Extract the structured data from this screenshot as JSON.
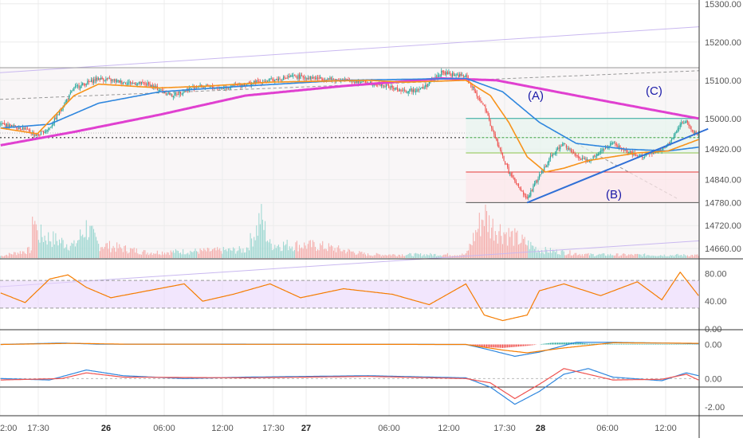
{
  "colors": {
    "candle_up": "#26a69a",
    "candle_down": "#ef5350",
    "ema_fast": "#f7931a",
    "ema_mid": "#2e86de",
    "ma_slow": "#e040d0",
    "trendline": "#2f6fd6",
    "wave_label": "#1a1aa8",
    "rsi_line": "#f57c00",
    "rsi_band": "#ead6fb",
    "macd_line": "#2e86de",
    "macd_signal": "#f57c00",
    "osc_line1": "#2e86de",
    "osc_line2": "#ef5350",
    "grid": "#ececec",
    "axis_text": "#555555"
  },
  "annotations": {
    "wave_a": "(A)",
    "wave_b": "(B)",
    "wave_c": "(C)"
  },
  "chart_data": [
    {
      "type": "candlestick",
      "panel": "price",
      "xlabel": "",
      "ylabel": "",
      "x_tick_labels": [
        "2:00",
        "17:30",
        "26",
        "06:00",
        "12:00",
        "17:30",
        "27",
        "06:00",
        "12:00",
        "17:30",
        "28",
        "06:00",
        "12:00"
      ],
      "y_tick_labels": [
        "15300.00",
        "15200.00",
        "15100.00",
        "15000.00",
        "14920.00",
        "14840.00",
        "14780.00",
        "14720.00",
        "14660.00"
      ],
      "ylim": [
        14635,
        15310
      ],
      "close_anchors": [
        [
          0,
          14985
        ],
        [
          18,
          14975
        ],
        [
          30,
          14955
        ],
        [
          40,
          14975
        ],
        [
          60,
          15080
        ],
        [
          80,
          15105
        ],
        [
          100,
          15095
        ],
        [
          120,
          15090
        ],
        [
          140,
          15060
        ],
        [
          160,
          15085
        ],
        [
          180,
          15080
        ],
        [
          200,
          15090
        ],
        [
          220,
          15100
        ],
        [
          240,
          15110
        ],
        [
          260,
          15105
        ],
        [
          280,
          15100
        ],
        [
          300,
          15095
        ],
        [
          315,
          15085
        ],
        [
          330,
          15070
        ],
        [
          345,
          15080
        ],
        [
          360,
          15120
        ],
        [
          380,
          15110
        ],
        [
          395,
          15030
        ],
        [
          405,
          14940
        ],
        [
          415,
          14860
        ],
        [
          425,
          14810
        ],
        [
          430,
          14790
        ],
        [
          440,
          14850
        ],
        [
          450,
          14905
        ],
        [
          460,
          14935
        ],
        [
          470,
          14900
        ],
        [
          480,
          14890
        ],
        [
          490,
          14915
        ],
        [
          500,
          14935
        ],
        [
          510,
          14915
        ],
        [
          520,
          14900
        ],
        [
          535,
          14910
        ],
        [
          545,
          14930
        ],
        [
          555,
          14985
        ],
        [
          560,
          14995
        ],
        [
          565,
          14965
        ],
        [
          570,
          14960
        ]
      ],
      "overlays": {
        "ema_fast_anchors": [
          [
            0,
            14975
          ],
          [
            30,
            14960
          ],
          [
            60,
            15060
          ],
          [
            80,
            15090
          ],
          [
            130,
            15080
          ],
          [
            170,
            15085
          ],
          [
            220,
            15095
          ],
          [
            300,
            15100
          ],
          [
            330,
            15095
          ],
          [
            380,
            15100
          ],
          [
            400,
            15060
          ],
          [
            415,
            14990
          ],
          [
            430,
            14900
          ],
          [
            445,
            14860
          ],
          [
            460,
            14870
          ],
          [
            480,
            14890
          ],
          [
            520,
            14910
          ],
          [
            545,
            14915
          ],
          [
            570,
            14945
          ]
        ],
        "ema_mid_anchors": [
          [
            0,
            14975
          ],
          [
            40,
            14985
          ],
          [
            80,
            15040
          ],
          [
            130,
            15070
          ],
          [
            200,
            15085
          ],
          [
            280,
            15100
          ],
          [
            380,
            15105
          ],
          [
            410,
            15070
          ],
          [
            440,
            14990
          ],
          [
            470,
            14935
          ],
          [
            510,
            14920
          ],
          [
            545,
            14915
          ],
          [
            570,
            14925
          ]
        ],
        "ma_slow_anchors": [
          [
            0,
            14930
          ],
          [
            60,
            14965
          ],
          [
            130,
            15010
          ],
          [
            200,
            15060
          ],
          [
            280,
            15085
          ],
          [
            360,
            15105
          ],
          [
            405,
            15100
          ],
          [
            470,
            15060
          ],
          [
            520,
            15030
          ],
          [
            570,
            15000
          ]
        ],
        "trendline_from": [
          430,
          14780
        ],
        "trendline_to": [
          570,
          14965
        ],
        "fib_levels": [
          15000,
          14950,
          14910,
          14860,
          14780
        ],
        "fib_x_range": [
          380,
          570
        ]
      },
      "volume_anchors": [
        [
          0,
          0.03
        ],
        [
          25,
          0.12
        ],
        [
          27,
          0.72
        ],
        [
          30,
          0.35
        ],
        [
          60,
          0.18
        ],
        [
          70,
          0.45
        ],
        [
          80,
          0.2
        ],
        [
          120,
          0.08
        ],
        [
          200,
          0.12
        ],
        [
          210,
          0.45
        ],
        [
          212,
          0.62
        ],
        [
          220,
          0.2
        ],
        [
          260,
          0.18
        ],
        [
          300,
          0.05
        ],
        [
          380,
          0.05
        ],
        [
          395,
          0.65
        ],
        [
          400,
          0.48
        ],
        [
          420,
          0.3
        ],
        [
          440,
          0.12
        ],
        [
          480,
          0.05
        ],
        [
          570,
          0.04
        ]
      ]
    },
    {
      "type": "line",
      "panel": "rsi",
      "y_tick_labels": [
        "80.00",
        "40.00",
        "0.00"
      ],
      "ylim": [
        0,
        100
      ],
      "band": [
        30,
        70
      ],
      "anchors": [
        [
          0,
          52
        ],
        [
          20,
          38
        ],
        [
          40,
          72
        ],
        [
          55,
          78
        ],
        [
          70,
          60
        ],
        [
          90,
          45
        ],
        [
          120,
          55
        ],
        [
          150,
          65
        ],
        [
          165,
          40
        ],
        [
          190,
          50
        ],
        [
          220,
          65
        ],
        [
          245,
          45
        ],
        [
          280,
          58
        ],
        [
          320,
          50
        ],
        [
          350,
          35
        ],
        [
          380,
          65
        ],
        [
          395,
          20
        ],
        [
          410,
          12
        ],
        [
          430,
          20
        ],
        [
          440,
          55
        ],
        [
          460,
          65
        ],
        [
          490,
          48
        ],
        [
          520,
          68
        ],
        [
          540,
          42
        ],
        [
          555,
          82
        ],
        [
          570,
          48
        ]
      ]
    },
    {
      "type": "line",
      "panel": "macd",
      "y_tick_labels": [
        "0.00"
      ],
      "ylim": [
        -1,
        1
      ],
      "line_anchors": [
        [
          0,
          0.0
        ],
        [
          50,
          0.1
        ],
        [
          80,
          0.02
        ],
        [
          200,
          0.02
        ],
        [
          380,
          0.0
        ],
        [
          395,
          -0.3
        ],
        [
          420,
          -0.85
        ],
        [
          440,
          -0.55
        ],
        [
          470,
          0.15
        ],
        [
          500,
          0.15
        ],
        [
          540,
          0.1
        ],
        [
          570,
          0.05
        ]
      ],
      "signal_anchors": [
        [
          0,
          0.0
        ],
        [
          60,
          0.08
        ],
        [
          100,
          0.02
        ],
        [
          380,
          0.0
        ],
        [
          410,
          -0.4
        ],
        [
          430,
          -0.6
        ],
        [
          460,
          -0.25
        ],
        [
          500,
          0.12
        ],
        [
          570,
          0.08
        ]
      ],
      "hist_anchors": [
        [
          380,
          0.0
        ],
        [
          395,
          -0.18
        ],
        [
          410,
          -0.25
        ],
        [
          430,
          -0.1
        ],
        [
          450,
          0.12
        ],
        [
          470,
          0.15
        ],
        [
          480,
          0.05
        ],
        [
          570,
          0.02
        ]
      ]
    },
    {
      "type": "line",
      "panel": "oscillator",
      "y_tick_labels": [
        "0.00",
        "-2.00"
      ],
      "ylim": [
        -2.6,
        1.3
      ],
      "line1_anchors": [
        [
          0,
          0.0
        ],
        [
          40,
          -0.1
        ],
        [
          70,
          0.6
        ],
        [
          100,
          0.2
        ],
        [
          150,
          0.0
        ],
        [
          200,
          0.1
        ],
        [
          300,
          0.2
        ],
        [
          380,
          0.05
        ],
        [
          400,
          -0.6
        ],
        [
          420,
          -1.8
        ],
        [
          440,
          -0.9
        ],
        [
          460,
          0.3
        ],
        [
          480,
          0.7
        ],
        [
          500,
          0.1
        ],
        [
          540,
          -0.15
        ],
        [
          560,
          0.4
        ],
        [
          570,
          0.2
        ]
      ],
      "line2_anchors": [
        [
          0,
          -0.1
        ],
        [
          50,
          0.0
        ],
        [
          70,
          0.4
        ],
        [
          100,
          0.1
        ],
        [
          200,
          0.05
        ],
        [
          300,
          0.15
        ],
        [
          380,
          0.0
        ],
        [
          400,
          -0.3
        ],
        [
          420,
          -1.4
        ],
        [
          440,
          -0.4
        ],
        [
          460,
          0.7
        ],
        [
          480,
          0.3
        ],
        [
          500,
          -0.1
        ],
        [
          540,
          -0.05
        ],
        [
          560,
          0.3
        ],
        [
          570,
          -0.1
        ]
      ]
    }
  ]
}
